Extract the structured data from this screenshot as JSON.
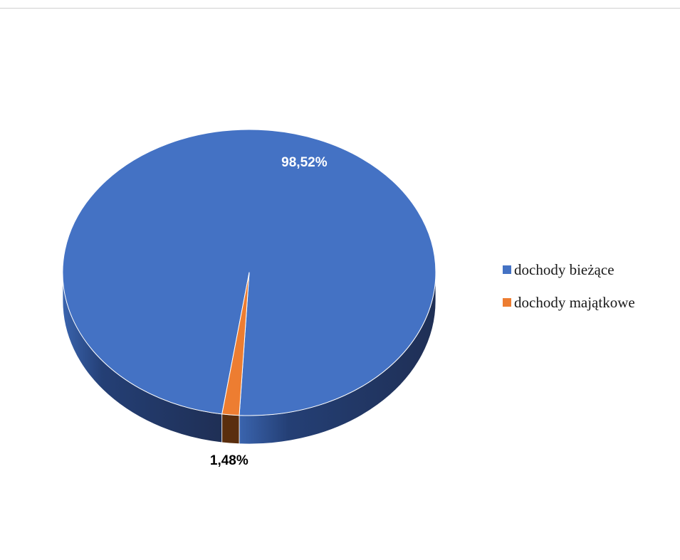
{
  "chart_data": {
    "type": "pie",
    "style": "3d",
    "categories": [
      "dochody bieżące",
      "dochody majątkowe"
    ],
    "values": [
      98.52,
      1.48
    ],
    "data_labels": [
      "98,52%",
      "1,48%"
    ],
    "colors": [
      "#4472C4",
      "#ED7D31"
    ],
    "side_colors": [
      "#2B4A86",
      "#5A2E0E"
    ],
    "legend_position": "right"
  }
}
